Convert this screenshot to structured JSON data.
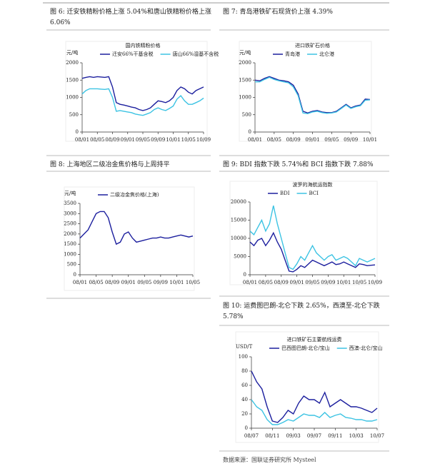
{
  "figures": [
    {
      "caption": "图 6: 迁安铁精粉价格上涨 5.04%和唐山铁精粉价格上涨 6.06%",
      "chart": {
        "type": "line",
        "title": "国内铁精粉价格",
        "unit": "元/吨",
        "categories": [
          "08/01",
          null,
          null,
          null,
          "08/05",
          null,
          null,
          null,
          "08/09",
          null,
          null,
          null,
          "09/01",
          null,
          null,
          null,
          "09/05",
          null,
          null,
          null,
          "09/09",
          null,
          null,
          null,
          "10/01",
          null,
          null,
          null,
          "10/05",
          null,
          null,
          null,
          "10/09"
        ],
        "series": [
          {
            "name": "迁安66%干基含税",
            "color": "#1c1f9e",
            "values": [
              1550,
              1580,
              1600,
              1580,
              1600,
              1590,
              1580,
              1600,
              1300,
              850,
              800,
              780,
              750,
              720,
              700,
              650,
              620,
              650,
              700,
              800,
              900,
              880,
              850,
              900,
              1000,
              1200,
              1300,
              1250,
              1150,
              1100,
              1200,
              1250,
              1300
            ]
          },
          {
            "name": "唐山66%湿基不含税",
            "color": "#3cc3e3",
            "values": [
              1100,
              1200,
              1250,
              1250,
              1250,
              1240,
              1230,
              1250,
              1000,
              600,
              620,
              600,
              580,
              560,
              520,
              500,
              480,
              520,
              560,
              650,
              700,
              650,
              620,
              680,
              750,
              950,
              1050,
              900,
              800,
              800,
              850,
              900,
              980
            ]
          }
        ],
        "ylim": [
          0,
          2000
        ],
        "yticks": [
          0,
          500,
          1000,
          1500,
          2000
        ]
      }
    },
    {
      "caption": "图 7: 青岛港铁矿石现货价上涨 4.39%",
      "chart": {
        "type": "line",
        "title": "进口铁矿石价格",
        "unit": "元/吨",
        "categories": [
          "08/01",
          null,
          null,
          null,
          "08/05",
          null,
          null,
          null,
          "08/09",
          null,
          null,
          null,
          "09/01",
          null,
          null,
          null,
          "09/05",
          null,
          null,
          null,
          "09/09",
          null,
          null,
          null,
          "10/01"
        ],
        "series": [
          {
            "name": "青岛港",
            "color": "#1c1f9e",
            "values": [
              1500,
              1480,
              1550,
              1600,
              1550,
              1500,
              1480,
              1450,
              1350,
              1100,
              600,
              550,
              600,
              620,
              580,
              560,
              560,
              600,
              700,
              800,
              700,
              750,
              780,
              950,
              940
            ]
          },
          {
            "name": "北仑港",
            "color": "#3cc3e3",
            "values": [
              1450,
              1450,
              1520,
              1580,
              1520,
              1480,
              1450,
              1420,
              1300,
              1050,
              550,
              530,
              580,
              600,
              560,
              540,
              550,
              580,
              680,
              780,
              680,
              730,
              760,
              920,
              930
            ]
          }
        ],
        "ylim": [
          0,
          2000
        ],
        "yticks": [
          0,
          500,
          1000,
          1500,
          2000
        ]
      }
    },
    {
      "caption": "图 8: 上海地区二级冶金焦价格与上周持平",
      "chart": {
        "type": "line",
        "unit": "元/吨",
        "categories": [
          "08/01",
          null,
          null,
          null,
          "08/05",
          null,
          null,
          null,
          "08/09",
          null,
          null,
          null,
          "09/01",
          null,
          null,
          null,
          "09/05",
          null,
          null,
          null,
          "09/09",
          null,
          null,
          null,
          "10/01",
          null,
          null,
          null,
          "10/05"
        ],
        "series": [
          {
            "name": "二级冶金焦价格(上海)",
            "color": "#1c1f9e",
            "values": [
              1800,
              2000,
              2200,
              2600,
              3000,
              3100,
              3100,
              2800,
              2100,
              1500,
              1600,
              2000,
              2100,
              1800,
              1600,
              1650,
              1700,
              1750,
              1800,
              1800,
              1850,
              1800,
              1800,
              1850,
              1900,
              1950,
              1900,
              1850,
              1900
            ]
          }
        ],
        "ylim": [
          0,
          3500
        ],
        "yticks": [
          0,
          500,
          1000,
          1500,
          2000,
          2500,
          3000,
          3500
        ]
      }
    },
    {
      "caption": "图 9: BDI 指数下跌 5.74%和 BCI 指数下跌 7.88%",
      "chart": {
        "type": "line",
        "title": "波罗的海航运指数",
        "categories": [
          "08/01",
          null,
          null,
          null,
          "08/05",
          null,
          null,
          null,
          "08/09",
          null,
          null,
          null,
          "09/01",
          null,
          null,
          null,
          "09/05",
          null,
          null,
          null,
          "09/09",
          null,
          null,
          null,
          "10/01",
          null,
          null,
          null,
          "10/05",
          null,
          null,
          null,
          "10/09"
        ],
        "series": [
          {
            "name": "BDI",
            "color": "#1c1f9e",
            "values": [
              9000,
              8000,
              9500,
              10000,
              8000,
              9500,
              11500,
              9000,
              7000,
              4000,
              1000,
              800,
              1500,
              2500,
              2000,
              3000,
              4000,
              3500,
              3000,
              2500,
              3000,
              3500,
              2800,
              3000,
              3500,
              3000,
              2500,
              2000,
              3000,
              2800,
              2500,
              2600,
              2700
            ]
          },
          {
            "name": "BCI",
            "color": "#3cc3e3",
            "values": [
              12000,
              11000,
              13000,
              15000,
              12000,
              14000,
              19000,
              14000,
              10000,
              6000,
              2000,
              1500,
              3000,
              5000,
              4000,
              6000,
              8000,
              6000,
              5000,
              4000,
              5000,
              5500,
              4000,
              4500,
              5000,
              4500,
              3500,
              2500,
              4500,
              4000,
              3500,
              4000,
              4500
            ]
          }
        ],
        "ylim": [
          0,
          20000
        ],
        "yticks": [
          0,
          5000,
          10000,
          15000,
          20000
        ]
      }
    },
    {
      "caption": "图 10: 运费图巴朗-北仑下跌 2.65%，西澳至-北仑下跌 5.78%",
      "chart": {
        "type": "line",
        "title": "进口铁矿石主要航线运费",
        "unit": "USD/T",
        "categories": [
          "08/07",
          null,
          null,
          null,
          "08/11",
          null,
          null,
          null,
          "09/03",
          null,
          null,
          null,
          "09/07",
          null,
          null,
          null,
          "09/11",
          null,
          null,
          null,
          "10/03",
          null,
          null,
          null,
          "10/07"
        ],
        "series": [
          {
            "name": "巴西图巴朗-北仑/宝山",
            "color": "#1c1f9e",
            "values": [
              80,
              65,
              55,
              30,
              10,
              8,
              15,
              25,
              20,
              35,
              45,
              40,
              40,
              35,
              50,
              30,
              35,
              40,
              35,
              30,
              30,
              28,
              25,
              22,
              28
            ]
          },
          {
            "name": "西澳-北仑/宝山",
            "color": "#3cc3e3",
            "values": [
              40,
              30,
              25,
              12,
              5,
              5,
              8,
              12,
              10,
              15,
              20,
              18,
              18,
              15,
              22,
              15,
              18,
              20,
              15,
              14,
              12,
              12,
              10,
              10,
              12
            ]
          }
        ],
        "ylim": [
          0,
          100
        ],
        "yticks": [
          0,
          20,
          40,
          60,
          80,
          100
        ]
      }
    }
  ],
  "source": "数据来源：国联证券研究所 Mysteel"
}
